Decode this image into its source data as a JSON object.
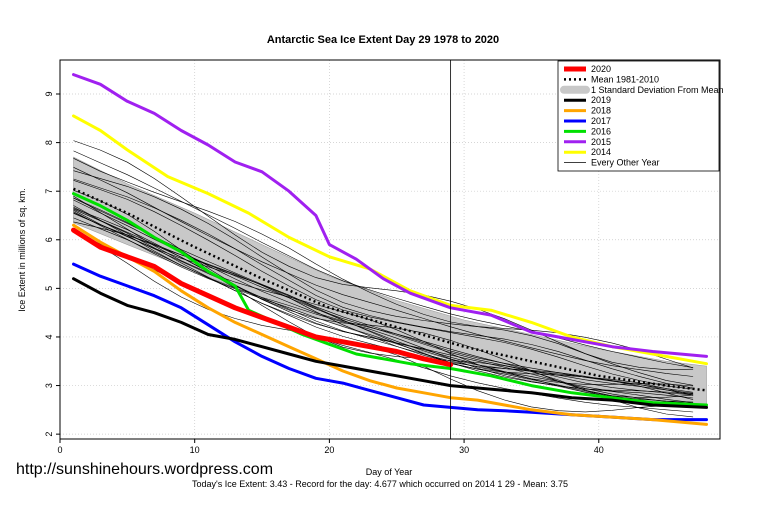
{
  "chart_data": {
    "type": "line",
    "title": "Antarctic Sea Ice Extent Day 29 1978 to 2020",
    "xlabel": "Day of Year",
    "ylabel": "Ice Extent in millions of sq. km.",
    "xlim": [
      0,
      49
    ],
    "ylim": [
      1.9,
      9.7
    ],
    "xticks": [
      0,
      10,
      20,
      30,
      40
    ],
    "yticks": [
      2,
      3,
      4,
      5,
      6,
      7,
      8,
      9
    ],
    "grid": true,
    "marker_day": 29,
    "legend_position": "top-right",
    "legend": [
      {
        "label": "2020",
        "color": "#ff0000",
        "style": "thick"
      },
      {
        "label": "Mean 1981-2010",
        "color": "#000000",
        "style": "dotted"
      },
      {
        "label": "1 Standard Deviation From Mean",
        "color": "#c8c8c8",
        "style": "band"
      },
      {
        "label": "2019",
        "color": "#000000",
        "style": "thick"
      },
      {
        "label": "2018",
        "color": "#ffa500",
        "style": "thick"
      },
      {
        "label": "2017",
        "color": "#0000ff",
        "style": "thick"
      },
      {
        "label": "2016",
        "color": "#00e000",
        "style": "thick"
      },
      {
        "label": "2015",
        "color": "#a020f0",
        "style": "thick"
      },
      {
        "label": "2014",
        "color": "#ffff00",
        "style": "thick"
      },
      {
        "label": "Every Other Year",
        "color": "#000000",
        "style": "thin"
      }
    ],
    "band": {
      "x": [
        1,
        5,
        10,
        15,
        20,
        25,
        30,
        35,
        40,
        45,
        48
      ],
      "upper": [
        7.7,
        7.15,
        6.55,
        5.9,
        5.25,
        4.75,
        4.35,
        4.05,
        3.75,
        3.5,
        3.4
      ],
      "lower": [
        6.35,
        5.9,
        5.35,
        4.8,
        4.3,
        3.85,
        3.45,
        3.1,
        2.8,
        2.6,
        2.55
      ]
    },
    "mean": {
      "x": [
        1,
        5,
        10,
        15,
        20,
        25,
        30,
        35,
        40,
        45,
        48
      ],
      "y": [
        7.05,
        6.55,
        5.85,
        5.2,
        4.6,
        4.2,
        3.8,
        3.5,
        3.2,
        3.0,
        2.9
      ]
    },
    "series": [
      {
        "name": "2014",
        "color": "#ffff00",
        "width": 3,
        "x": [
          1,
          3,
          5,
          8,
          11,
          14,
          17,
          20,
          23,
          26,
          29,
          32,
          35,
          38,
          41,
          44,
          48
        ],
        "y": [
          8.55,
          8.25,
          7.85,
          7.3,
          6.95,
          6.55,
          6.05,
          5.65,
          5.4,
          4.95,
          4.65,
          4.55,
          4.3,
          4.0,
          3.8,
          3.65,
          3.45
        ]
      },
      {
        "name": "2015",
        "color": "#a020f0",
        "width": 3,
        "x": [
          1,
          3,
          5,
          7,
          9,
          11,
          13,
          15,
          17,
          19,
          20,
          22,
          24,
          26,
          29,
          32,
          35,
          38,
          41,
          44,
          48
        ],
        "y": [
          9.4,
          9.2,
          8.85,
          8.6,
          8.25,
          7.95,
          7.6,
          7.4,
          7.0,
          6.5,
          5.9,
          5.6,
          5.2,
          4.9,
          4.6,
          4.45,
          4.1,
          3.95,
          3.8,
          3.7,
          3.6
        ]
      },
      {
        "name": "2016",
        "color": "#00e000",
        "width": 3,
        "x": [
          1,
          3,
          5,
          7,
          9,
          11,
          13,
          14,
          16,
          18,
          20,
          22,
          24,
          26,
          29,
          32,
          35,
          38,
          41,
          44,
          48
        ],
        "y": [
          6.95,
          6.7,
          6.4,
          6.05,
          5.75,
          5.35,
          5.05,
          4.55,
          4.3,
          4.05,
          3.85,
          3.65,
          3.55,
          3.45,
          3.35,
          3.2,
          3.0,
          2.85,
          2.75,
          2.65,
          2.6
        ]
      },
      {
        "name": "2017",
        "color": "#0000ff",
        "width": 3,
        "x": [
          1,
          3,
          5,
          7,
          9,
          11,
          13,
          15,
          17,
          19,
          21,
          23,
          25,
          27,
          29,
          31,
          33,
          35,
          38,
          41,
          44,
          48
        ],
        "y": [
          5.5,
          5.25,
          5.05,
          4.85,
          4.6,
          4.25,
          3.9,
          3.6,
          3.35,
          3.15,
          3.05,
          2.9,
          2.75,
          2.6,
          2.55,
          2.5,
          2.48,
          2.45,
          2.4,
          2.35,
          2.3,
          2.3
        ]
      },
      {
        "name": "2018",
        "color": "#ffa500",
        "width": 3,
        "x": [
          1,
          3,
          5,
          7,
          9,
          11,
          13,
          15,
          17,
          19,
          21,
          23,
          25,
          27,
          29,
          31,
          33,
          35,
          38,
          41,
          44,
          48
        ],
        "y": [
          6.3,
          5.95,
          5.65,
          5.35,
          4.95,
          4.6,
          4.3,
          4.05,
          3.8,
          3.55,
          3.3,
          3.1,
          2.95,
          2.85,
          2.75,
          2.7,
          2.6,
          2.5,
          2.4,
          2.35,
          2.3,
          2.2
        ]
      },
      {
        "name": "2019",
        "color": "#000000",
        "width": 3,
        "x": [
          1,
          3,
          5,
          7,
          9,
          11,
          13,
          15,
          17,
          19,
          21,
          23,
          25,
          27,
          29,
          31,
          33,
          35,
          38,
          41,
          44,
          48
        ],
        "y": [
          5.2,
          4.9,
          4.65,
          4.5,
          4.3,
          4.05,
          3.95,
          3.8,
          3.65,
          3.5,
          3.4,
          3.3,
          3.2,
          3.1,
          3.0,
          2.95,
          2.9,
          2.85,
          2.75,
          2.7,
          2.6,
          2.55
        ]
      },
      {
        "name": "2020",
        "color": "#ff0000",
        "width": 5,
        "x": [
          1,
          3,
          5,
          7,
          9,
          11,
          13,
          15,
          17,
          19,
          21,
          23,
          25,
          27,
          29
        ],
        "y": [
          6.2,
          5.85,
          5.65,
          5.45,
          5.1,
          4.85,
          4.6,
          4.4,
          4.2,
          4.0,
          3.9,
          3.8,
          3.7,
          3.55,
          3.43
        ]
      }
    ]
  },
  "watermark": "http://sunshinehours.wordpress.com",
  "footer": "Today's Ice Extent: 3.43  - Record for the day: 4.677 which occurred on 2014 1 29  - Mean: 3.75"
}
